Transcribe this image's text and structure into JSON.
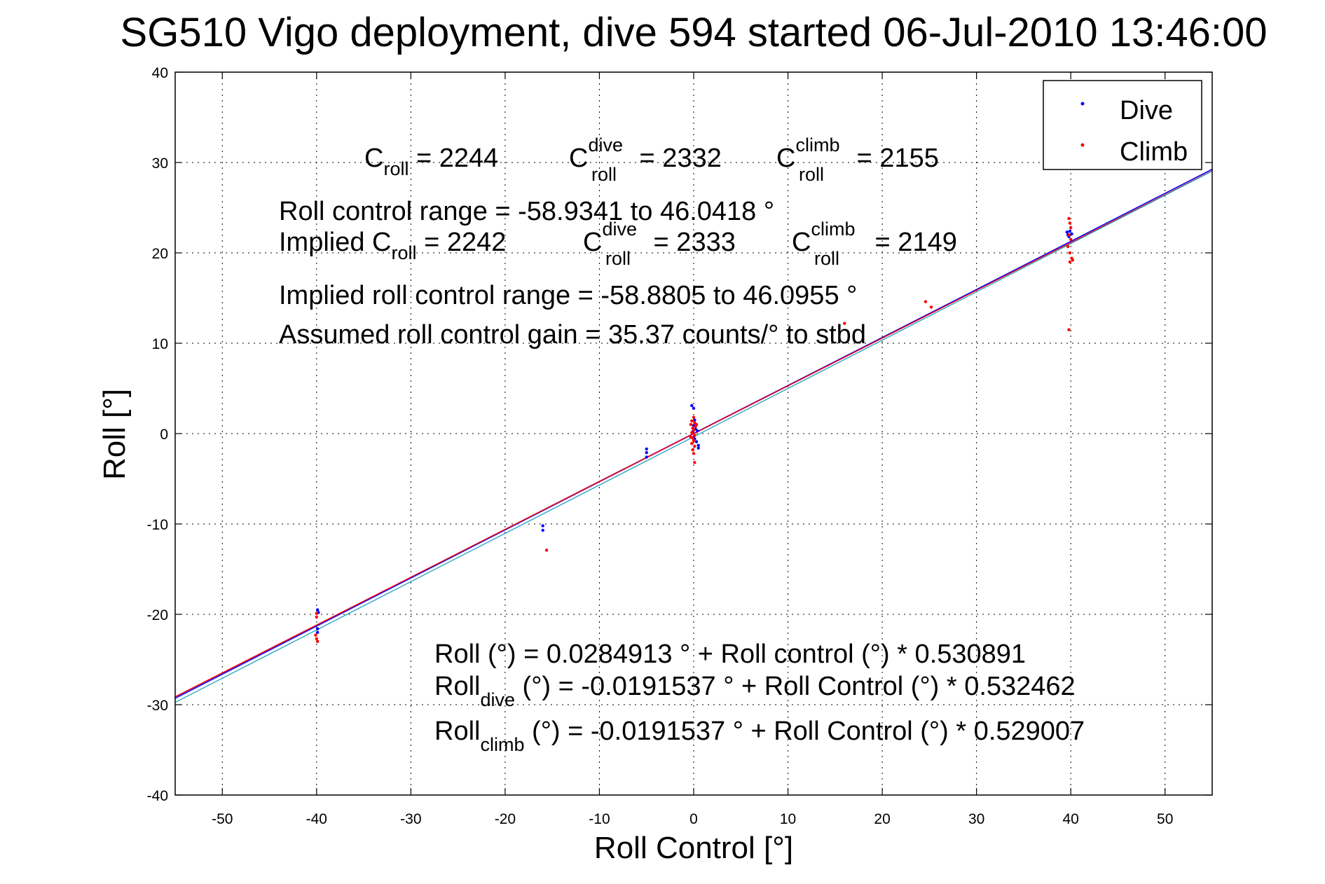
{
  "chart_data": {
    "type": "scatter",
    "title": "SG510 Vigo deployment, dive 594 started 06-Jul-2010 13:46:00",
    "xlabel": "Roll Control [°]",
    "ylabel": "Roll [°]",
    "xlim": [
      -55,
      55
    ],
    "ylim": [
      -40,
      40
    ],
    "xticks": [
      -50,
      -40,
      -30,
      -20,
      -10,
      0,
      10,
      20,
      30,
      40,
      50
    ],
    "yticks": [
      -40,
      -30,
      -20,
      -10,
      0,
      10,
      20,
      30,
      40
    ],
    "xtick_labels": [
      "-50",
      "-40",
      "-30",
      "-20",
      "-10",
      "0",
      "10",
      "20",
      "30",
      "40",
      "50"
    ],
    "ytick_labels": [
      "-40",
      "-30",
      "-20",
      "-10",
      "0",
      "10",
      "20",
      "30",
      "40"
    ],
    "grid": true,
    "legend_position": "top-right",
    "series": [
      {
        "name": "Dive",
        "color": "#0000ff",
        "marker": "dot",
        "points": [
          [
            -39.9,
            -19.5
          ],
          [
            -39.8,
            -19.8
          ],
          [
            -39.9,
            -21.6
          ],
          [
            -39.9,
            -22.0
          ],
          [
            -16.0,
            -10.2
          ],
          [
            -16.0,
            -10.7
          ],
          [
            -5.0,
            -1.7
          ],
          [
            -5.0,
            -2.1
          ],
          [
            -5.0,
            -2.6
          ],
          [
            -0.2,
            3.1
          ],
          [
            0.0,
            2.8
          ],
          [
            0.1,
            1.5
          ],
          [
            0.0,
            0.9
          ],
          [
            0.2,
            0.5
          ],
          [
            -0.1,
            0.2
          ],
          [
            0.0,
            -0.4
          ],
          [
            0.3,
            -0.9
          ],
          [
            0.5,
            -1.3
          ],
          [
            0.5,
            -1.6
          ],
          [
            0.1,
            -0.6
          ],
          [
            0.4,
            0.3
          ],
          [
            39.6,
            22.3
          ],
          [
            39.7,
            22.0
          ],
          [
            39.8,
            21.8
          ],
          [
            39.9,
            22.4
          ],
          [
            40.1,
            22.1
          ]
        ]
      },
      {
        "name": "Climb",
        "color": "#ff0000",
        "marker": "dot",
        "points": [
          [
            -40.0,
            -19.9
          ],
          [
            -40.0,
            -20.3
          ],
          [
            -40.1,
            -22.3
          ],
          [
            -40.0,
            -22.7
          ],
          [
            -39.9,
            -23.0
          ],
          [
            -15.6,
            -12.9
          ],
          [
            0.0,
            1.8
          ],
          [
            -0.2,
            1.4
          ],
          [
            0.1,
            1.2
          ],
          [
            -0.3,
            1.0
          ],
          [
            0.2,
            0.8
          ],
          [
            -0.1,
            0.6
          ],
          [
            0.0,
            0.4
          ],
          [
            -0.2,
            0.1
          ],
          [
            0.1,
            -0.2
          ],
          [
            -0.1,
            -0.5
          ],
          [
            0.0,
            -0.8
          ],
          [
            -0.2,
            -1.1
          ],
          [
            0.1,
            -1.4
          ],
          [
            -0.1,
            -1.8
          ],
          [
            0.0,
            -2.2
          ],
          [
            0.1,
            -3.2
          ],
          [
            0.3,
            1.0
          ],
          [
            -0.3,
            -0.4
          ],
          [
            16.0,
            12.2
          ],
          [
            24.6,
            14.6
          ],
          [
            25.2,
            14.0
          ],
          [
            39.8,
            23.8
          ],
          [
            39.9,
            23.3
          ],
          [
            40.0,
            22.8
          ],
          [
            39.8,
            22.0
          ],
          [
            40.0,
            21.5
          ],
          [
            39.7,
            20.7
          ],
          [
            39.9,
            20.0
          ],
          [
            40.1,
            19.4
          ],
          [
            39.9,
            19.0
          ],
          [
            40.2,
            19.2
          ],
          [
            39.8,
            11.5
          ]
        ]
      }
    ],
    "fit_lines": [
      {
        "name": "Roll fit",
        "color": "#8000a0",
        "intercept": 0.0284913,
        "slope": 0.530891
      },
      {
        "name": "Roll dive fit",
        "color": "#0000ff",
        "intercept": -0.0191537,
        "slope": 0.532462
      },
      {
        "name": "Roll climb fit",
        "color": "#ff0000",
        "intercept": -0.0191537,
        "slope": 0.529007
      },
      {
        "name": "Implied fit",
        "color": "#20a0c0",
        "intercept": -0.35,
        "slope": 0.5345
      }
    ],
    "annotations": {
      "c_roll": {
        "base": "C",
        "sub": "roll",
        "value": " = 2244"
      },
      "c_roll_dive": {
        "base": "C",
        "sup": "dive",
        "sub": "roll",
        "value": " = 2332"
      },
      "c_roll_climb": {
        "base": "C",
        "sup": "climb",
        "sub": "roll",
        "value": " = 2155"
      },
      "roll_control_range": "Roll control range = -58.9341 to 46.0418 °",
      "implied_prefix": "Implied C",
      "implied_c_roll_sub": "roll",
      "implied_c_roll_value": " = 2242",
      "implied_c_roll_dive": {
        "base": "C",
        "sup": "dive",
        "sub": "roll",
        "value": " = 2333"
      },
      "implied_c_roll_climb": {
        "base": "C",
        "sup": "climb",
        "sub": "roll",
        "value": " = 2149"
      },
      "implied_range": "Implied roll control range = -58.8805 to 46.0955 °",
      "assumed_gain": "Assumed roll control gain = 35.37 counts/° to stbd",
      "fit_eq_all": "Roll (°) = 0.0284913 ° + Roll control (°) * 0.530891",
      "fit_eq_dive": {
        "base": "Roll",
        "sub": "dive",
        "rest": " (°) = -0.0191537 ° + Roll Control (°) * 0.532462"
      },
      "fit_eq_climb": {
        "base": "Roll",
        "sub": "climb",
        "rest": " (°) = -0.0191537 ° + Roll Control (°) * 0.529007"
      }
    }
  }
}
